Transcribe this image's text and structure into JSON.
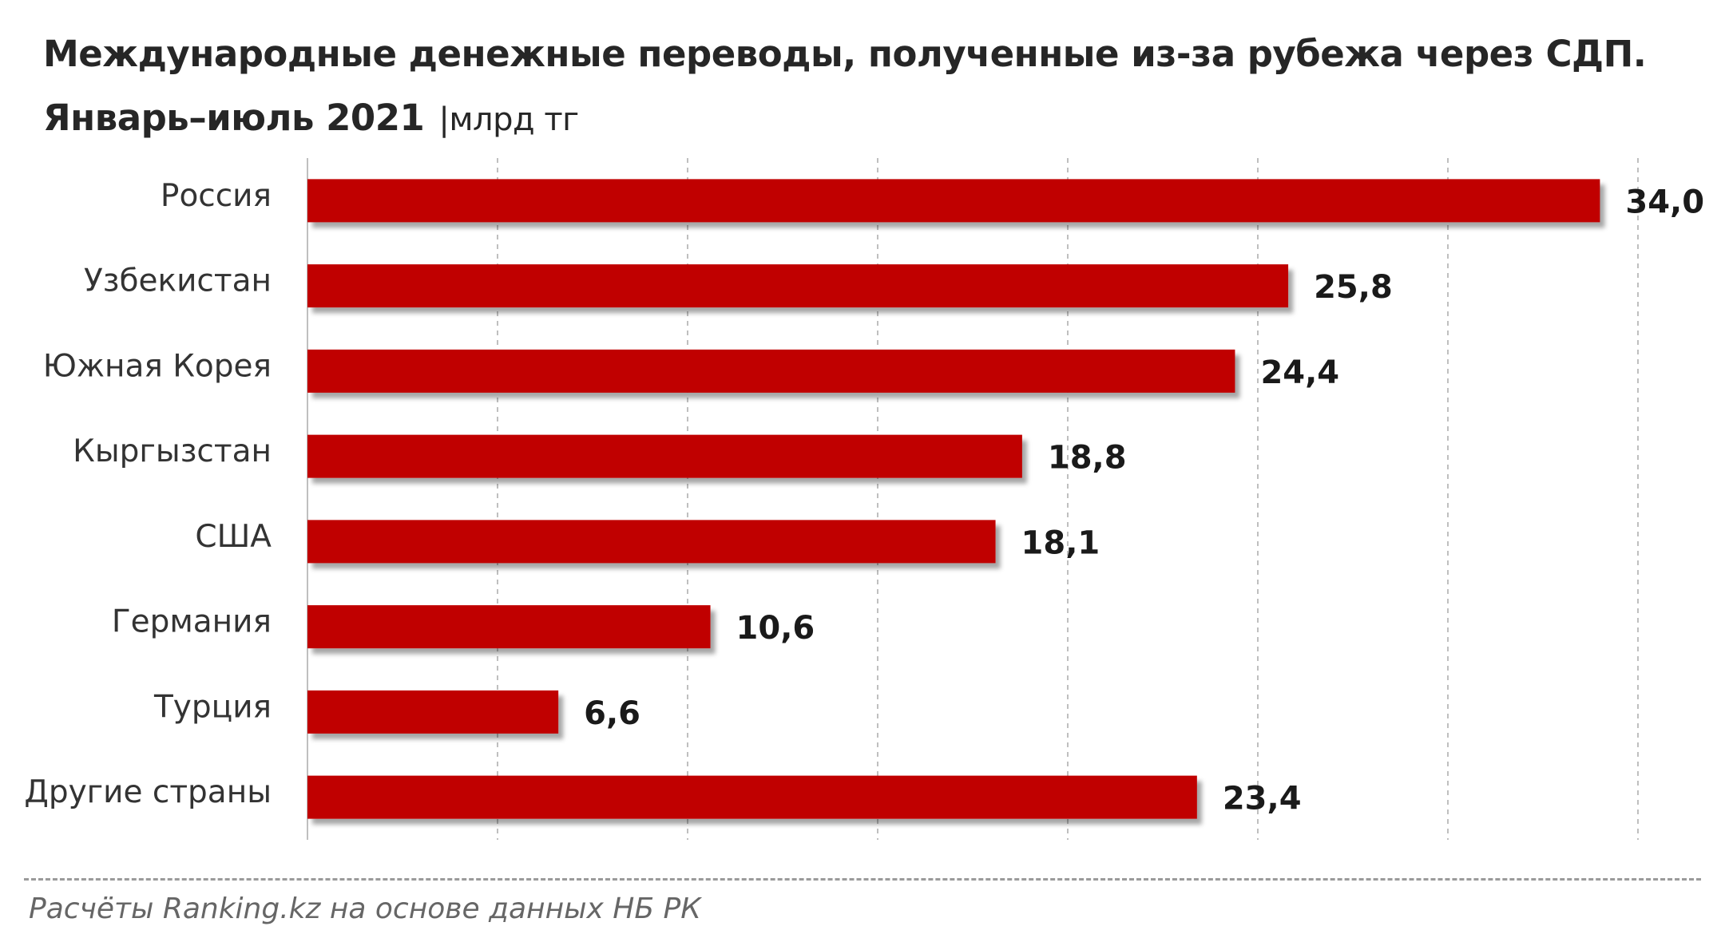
{
  "header": {
    "title_line1": "Международные денежные переводы, полученные из-за рубежа через СДП.",
    "title_line2": "Январь–июль 2021",
    "unit": "|млрд тг"
  },
  "footer": {
    "source": "Расчёты Ranking.kz на основе данных НБ РК"
  },
  "colors": {
    "bar": "#c00000",
    "grid": "#bfbfbf"
  },
  "chart_data": {
    "type": "bar",
    "orientation": "horizontal",
    "title": "Международные денежные переводы, полученные из-за рубежа через СДП. Январь–июль 2021",
    "unit": "млрд тг",
    "categories": [
      "Россия",
      "Узбекистан",
      "Южная Корея",
      "Кыргызстан",
      "США",
      "Германия",
      "Турция",
      "Другие страны"
    ],
    "values": [
      34.0,
      25.8,
      24.4,
      18.8,
      18.1,
      10.6,
      6.6,
      23.4
    ],
    "value_labels": [
      "34,0",
      "25,8",
      "24,4",
      "18,8",
      "18,1",
      "10,6",
      "6,6",
      "23,4"
    ],
    "xlim": [
      0,
      35
    ],
    "grid": true,
    "legend": "none"
  }
}
